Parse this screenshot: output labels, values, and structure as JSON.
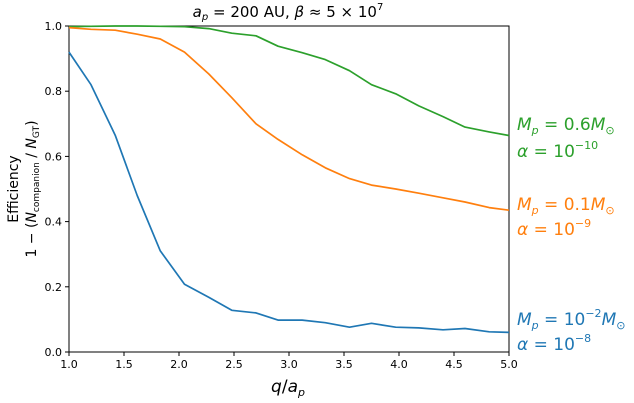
{
  "chart_data": {
    "type": "line",
    "title_parts": {
      "var": "a",
      "sub": "p",
      "eq": " = 200 AU,  ",
      "beta": "β",
      "approx": " ≈ 5 × 10",
      "exp": "7"
    },
    "xlabel_parts": {
      "q": "q",
      "slash": "/",
      "a": "a",
      "sub": "p"
    },
    "ylabel_line1": "Efficiency",
    "ylabel_line2_parts": {
      "pre": "1 − (",
      "N1": "N",
      "sub1": "companion",
      "mid": " / ",
      "N2": "N",
      "sub2": "GT",
      "post": ")"
    },
    "xlim": [
      1.0,
      5.0
    ],
    "ylim": [
      0.0,
      1.0
    ],
    "x_ticks": [
      1.0,
      1.5,
      2.0,
      2.5,
      3.0,
      3.5,
      4.0,
      4.5,
      5.0
    ],
    "x_tick_labels": [
      "1.0",
      "1.5",
      "2.0",
      "2.5",
      "3.0",
      "3.5",
      "4.0",
      "4.5",
      "5.0"
    ],
    "y_ticks": [
      0.0,
      0.2,
      0.4,
      0.6,
      0.8,
      1.0
    ],
    "y_tick_labels": [
      "0.0",
      "0.2",
      "0.4",
      "0.6",
      "0.8",
      "1.0"
    ],
    "grid": false,
    "x": [
      1.0,
      1.2,
      1.42,
      1.62,
      1.83,
      2.05,
      2.27,
      2.48,
      2.7,
      2.9,
      3.12,
      3.33,
      3.55,
      3.75,
      3.97,
      4.18,
      4.4,
      4.6,
      4.82,
      5.0
    ],
    "series": [
      {
        "color": "#2ca02c",
        "values": [
          0.998,
          0.999,
          1.0,
          1.0,
          0.999,
          0.998,
          0.992,
          0.978,
          0.97,
          0.938,
          0.918,
          0.897,
          0.863,
          0.82,
          0.792,
          0.755,
          0.722,
          0.69,
          0.675,
          0.664
        ],
        "annotation": {
          "M": "M",
          "Msub": "p",
          "Meq": " = 0.6",
          "Munit": "M",
          "Msun": "⊙",
          "alpha": "α",
          "aeq": " = 10",
          "aexp": "−10"
        }
      },
      {
        "color": "#ff7f0e",
        "values": [
          0.995,
          0.99,
          0.987,
          0.975,
          0.96,
          0.92,
          0.853,
          0.78,
          0.7,
          0.652,
          0.605,
          0.565,
          0.532,
          0.512,
          0.5,
          0.487,
          0.473,
          0.46,
          0.443,
          0.435
        ],
        "annotation": {
          "M": "M",
          "Msub": "p",
          "Meq": " = 0.1",
          "Munit": "M",
          "Msun": "⊙",
          "alpha": "α",
          "aeq": " = 10",
          "aexp": "−9"
        }
      },
      {
        "color": "#1f77b4",
        "values": [
          0.92,
          0.82,
          0.665,
          0.48,
          0.31,
          0.208,
          0.168,
          0.128,
          0.12,
          0.098,
          0.098,
          0.09,
          0.076,
          0.088,
          0.076,
          0.074,
          0.068,
          0.072,
          0.062,
          0.06
        ],
        "annotation": {
          "M": "M",
          "Msub": "p",
          "Meq": " = 10",
          "Mexp": "−2",
          "Munit": "M",
          "Msun": "⊙",
          "alpha": "α",
          "aeq": " = 10",
          "aexp": "−8"
        }
      }
    ]
  }
}
